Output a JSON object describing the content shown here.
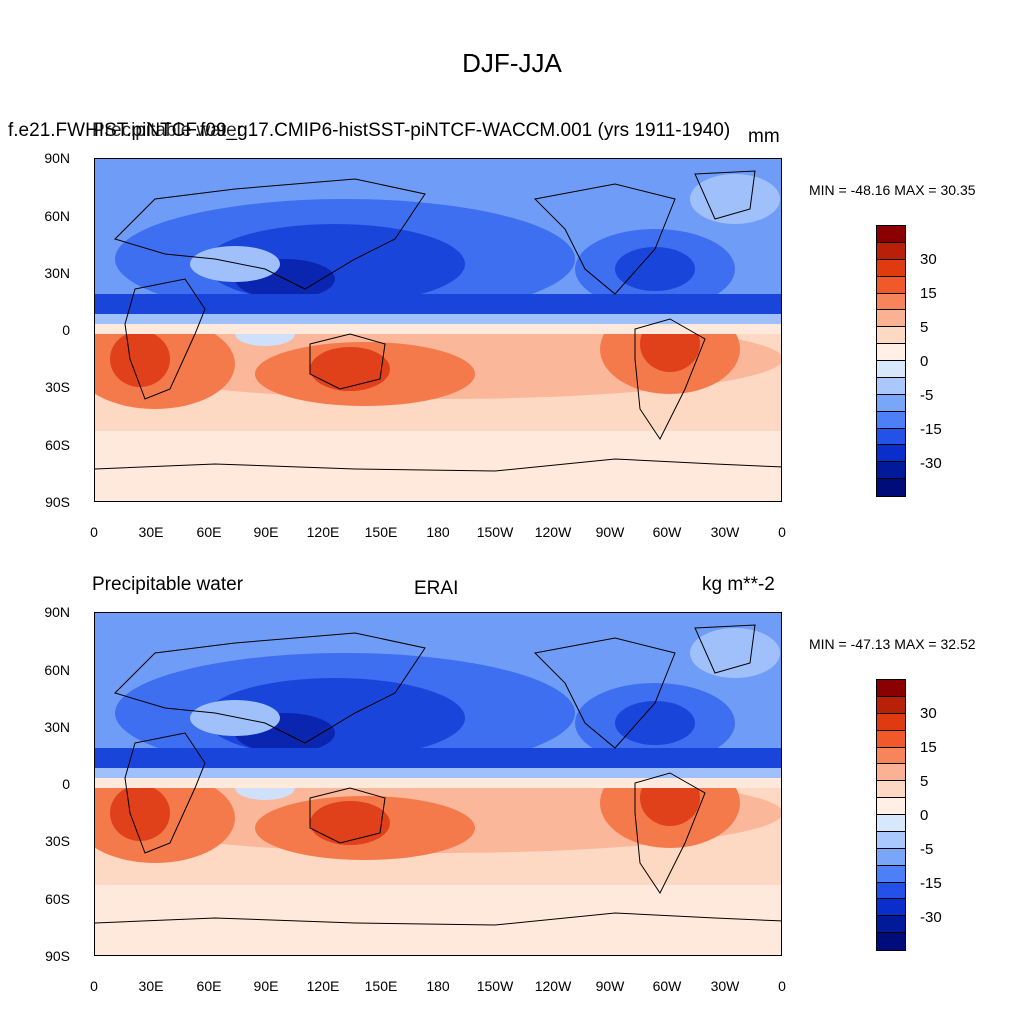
{
  "figure": {
    "title": "DJF-JJA"
  },
  "panels": [
    {
      "left_title": "Precipitable water",
      "center_title": "f.e21.FWHIST.piNTCF.f09_g17.CMIP6-histSST-piNTCF-WACCM.001 (yrs 1911-1940)",
      "right_title": "mm",
      "minmax": "MIN = -48.16 MAX =  30.35"
    },
    {
      "left_title": "Precipitable water",
      "center_title": "ERAI",
      "right_title": "kg m**-2",
      "minmax": "MIN = -47.13 MAX =  32.52"
    }
  ],
  "axes": {
    "lat_ticks": [
      "90N",
      "60N",
      "30N",
      "0",
      "30S",
      "60S",
      "90S"
    ],
    "lon_ticks": [
      "0",
      "30E",
      "60E",
      "90E",
      "120E",
      "150E",
      "180",
      "150W",
      "120W",
      "90W",
      "60W",
      "30W",
      "0"
    ]
  },
  "colorbar": {
    "labels": [
      "30",
      "15",
      "5",
      "0",
      "-5",
      "-15",
      "-30"
    ],
    "colors": [
      "#8b0000",
      "#b8200a",
      "#e03a10",
      "#f2592a",
      "#f7845a",
      "#fbb294",
      "#fdd9c3",
      "#ffefe4",
      "#d8e8fc",
      "#aac8fb",
      "#7aa6fa",
      "#4d7ff6",
      "#2452e8",
      "#0a2ecb",
      "#001a9a",
      "#000c7a"
    ]
  },
  "palette": {
    "strong_red": "#e0401a",
    "red": "#f47a4c",
    "light_red": "#fbb79a",
    "pale_red": "#fdd8c2",
    "pale": "#ffe9dc",
    "pale_blue": "#cfe0fb",
    "light_blue": "#9fc0fb",
    "blue": "#6f9cf6",
    "mid_blue": "#3e6ff0",
    "dark_blue": "#1a45db",
    "navy": "#0a26b0"
  }
}
